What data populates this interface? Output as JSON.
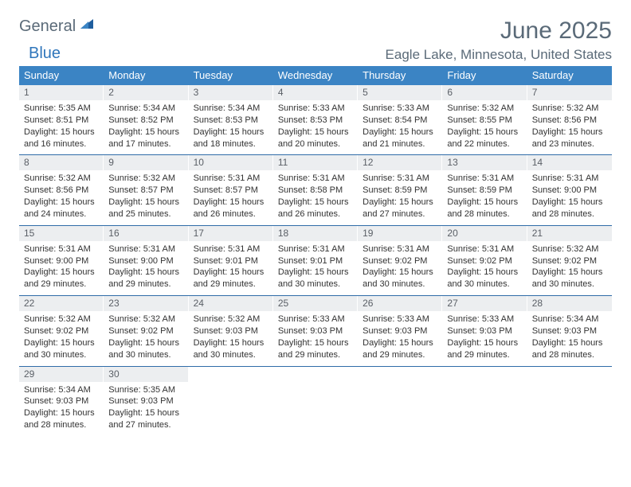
{
  "logo": {
    "part1": "General",
    "part2": "Blue"
  },
  "title": "June 2025",
  "location": "Eagle Lake, Minnesota, United States",
  "colors": {
    "header_bg": "#3b84c4",
    "header_text": "#ffffff",
    "daynum_bg": "#eceef0",
    "week_divider": "#2f6ca8",
    "text_muted": "#5a6a78",
    "logo_accent": "#2f76bb"
  },
  "dow": [
    "Sunday",
    "Monday",
    "Tuesday",
    "Wednesday",
    "Thursday",
    "Friday",
    "Saturday"
  ],
  "weeks": [
    [
      {
        "n": "1",
        "sr": "Sunrise: 5:35 AM",
        "ss": "Sunset: 8:51 PM",
        "d1": "Daylight: 15 hours",
        "d2": "and 16 minutes."
      },
      {
        "n": "2",
        "sr": "Sunrise: 5:34 AM",
        "ss": "Sunset: 8:52 PM",
        "d1": "Daylight: 15 hours",
        "d2": "and 17 minutes."
      },
      {
        "n": "3",
        "sr": "Sunrise: 5:34 AM",
        "ss": "Sunset: 8:53 PM",
        "d1": "Daylight: 15 hours",
        "d2": "and 18 minutes."
      },
      {
        "n": "4",
        "sr": "Sunrise: 5:33 AM",
        "ss": "Sunset: 8:53 PM",
        "d1": "Daylight: 15 hours",
        "d2": "and 20 minutes."
      },
      {
        "n": "5",
        "sr": "Sunrise: 5:33 AM",
        "ss": "Sunset: 8:54 PM",
        "d1": "Daylight: 15 hours",
        "d2": "and 21 minutes."
      },
      {
        "n": "6",
        "sr": "Sunrise: 5:32 AM",
        "ss": "Sunset: 8:55 PM",
        "d1": "Daylight: 15 hours",
        "d2": "and 22 minutes."
      },
      {
        "n": "7",
        "sr": "Sunrise: 5:32 AM",
        "ss": "Sunset: 8:56 PM",
        "d1": "Daylight: 15 hours",
        "d2": "and 23 minutes."
      }
    ],
    [
      {
        "n": "8",
        "sr": "Sunrise: 5:32 AM",
        "ss": "Sunset: 8:56 PM",
        "d1": "Daylight: 15 hours",
        "d2": "and 24 minutes."
      },
      {
        "n": "9",
        "sr": "Sunrise: 5:32 AM",
        "ss": "Sunset: 8:57 PM",
        "d1": "Daylight: 15 hours",
        "d2": "and 25 minutes."
      },
      {
        "n": "10",
        "sr": "Sunrise: 5:31 AM",
        "ss": "Sunset: 8:57 PM",
        "d1": "Daylight: 15 hours",
        "d2": "and 26 minutes."
      },
      {
        "n": "11",
        "sr": "Sunrise: 5:31 AM",
        "ss": "Sunset: 8:58 PM",
        "d1": "Daylight: 15 hours",
        "d2": "and 26 minutes."
      },
      {
        "n": "12",
        "sr": "Sunrise: 5:31 AM",
        "ss": "Sunset: 8:59 PM",
        "d1": "Daylight: 15 hours",
        "d2": "and 27 minutes."
      },
      {
        "n": "13",
        "sr": "Sunrise: 5:31 AM",
        "ss": "Sunset: 8:59 PM",
        "d1": "Daylight: 15 hours",
        "d2": "and 28 minutes."
      },
      {
        "n": "14",
        "sr": "Sunrise: 5:31 AM",
        "ss": "Sunset: 9:00 PM",
        "d1": "Daylight: 15 hours",
        "d2": "and 28 minutes."
      }
    ],
    [
      {
        "n": "15",
        "sr": "Sunrise: 5:31 AM",
        "ss": "Sunset: 9:00 PM",
        "d1": "Daylight: 15 hours",
        "d2": "and 29 minutes."
      },
      {
        "n": "16",
        "sr": "Sunrise: 5:31 AM",
        "ss": "Sunset: 9:00 PM",
        "d1": "Daylight: 15 hours",
        "d2": "and 29 minutes."
      },
      {
        "n": "17",
        "sr": "Sunrise: 5:31 AM",
        "ss": "Sunset: 9:01 PM",
        "d1": "Daylight: 15 hours",
        "d2": "and 29 minutes."
      },
      {
        "n": "18",
        "sr": "Sunrise: 5:31 AM",
        "ss": "Sunset: 9:01 PM",
        "d1": "Daylight: 15 hours",
        "d2": "and 30 minutes."
      },
      {
        "n": "19",
        "sr": "Sunrise: 5:31 AM",
        "ss": "Sunset: 9:02 PM",
        "d1": "Daylight: 15 hours",
        "d2": "and 30 minutes."
      },
      {
        "n": "20",
        "sr": "Sunrise: 5:31 AM",
        "ss": "Sunset: 9:02 PM",
        "d1": "Daylight: 15 hours",
        "d2": "and 30 minutes."
      },
      {
        "n": "21",
        "sr": "Sunrise: 5:32 AM",
        "ss": "Sunset: 9:02 PM",
        "d1": "Daylight: 15 hours",
        "d2": "and 30 minutes."
      }
    ],
    [
      {
        "n": "22",
        "sr": "Sunrise: 5:32 AM",
        "ss": "Sunset: 9:02 PM",
        "d1": "Daylight: 15 hours",
        "d2": "and 30 minutes."
      },
      {
        "n": "23",
        "sr": "Sunrise: 5:32 AM",
        "ss": "Sunset: 9:02 PM",
        "d1": "Daylight: 15 hours",
        "d2": "and 30 minutes."
      },
      {
        "n": "24",
        "sr": "Sunrise: 5:32 AM",
        "ss": "Sunset: 9:03 PM",
        "d1": "Daylight: 15 hours",
        "d2": "and 30 minutes."
      },
      {
        "n": "25",
        "sr": "Sunrise: 5:33 AM",
        "ss": "Sunset: 9:03 PM",
        "d1": "Daylight: 15 hours",
        "d2": "and 29 minutes."
      },
      {
        "n": "26",
        "sr": "Sunrise: 5:33 AM",
        "ss": "Sunset: 9:03 PM",
        "d1": "Daylight: 15 hours",
        "d2": "and 29 minutes."
      },
      {
        "n": "27",
        "sr": "Sunrise: 5:33 AM",
        "ss": "Sunset: 9:03 PM",
        "d1": "Daylight: 15 hours",
        "d2": "and 29 minutes."
      },
      {
        "n": "28",
        "sr": "Sunrise: 5:34 AM",
        "ss": "Sunset: 9:03 PM",
        "d1": "Daylight: 15 hours",
        "d2": "and 28 minutes."
      }
    ],
    [
      {
        "n": "29",
        "sr": "Sunrise: 5:34 AM",
        "ss": "Sunset: 9:03 PM",
        "d1": "Daylight: 15 hours",
        "d2": "and 28 minutes."
      },
      {
        "n": "30",
        "sr": "Sunrise: 5:35 AM",
        "ss": "Sunset: 9:03 PM",
        "d1": "Daylight: 15 hours",
        "d2": "and 27 minutes."
      },
      null,
      null,
      null,
      null,
      null
    ]
  ]
}
